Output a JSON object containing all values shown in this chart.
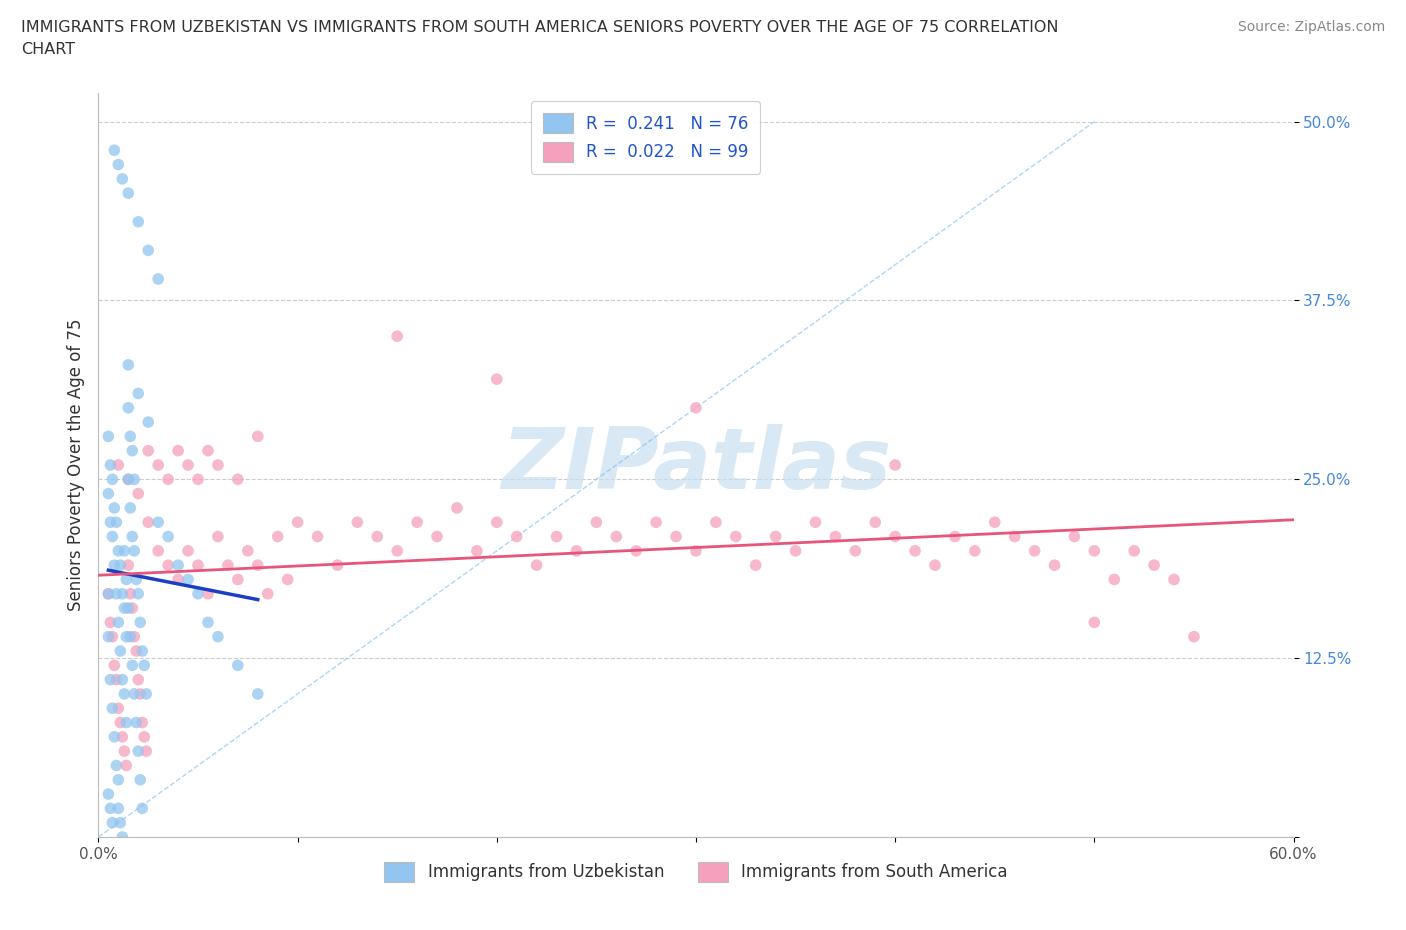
{
  "title_line1": "IMMIGRANTS FROM UZBEKISTAN VS IMMIGRANTS FROM SOUTH AMERICA SENIORS POVERTY OVER THE AGE OF 75 CORRELATION",
  "title_line2": "CHART",
  "source": "Source: ZipAtlas.com",
  "ylabel": "Seniors Poverty Over the Age of 75",
  "xlim": [
    0.0,
    0.6
  ],
  "ylim": [
    0.0,
    0.52
  ],
  "color_uzbekistan": "#92C5F0",
  "color_south_america": "#F5A0BC",
  "trendline_uzbekistan": "#1A3FC4",
  "trendline_south_america": "#E8557A",
  "diag_color": "#7ABAEE",
  "R_uzbekistan": 0.241,
  "N_uzbekistan": 76,
  "R_south_america": 0.022,
  "N_south_america": 99,
  "grid_color": "#CCCCCC",
  "text_color": "#333333",
  "right_tick_color": "#4488DD",
  "legend_R_color": "#2255CC",
  "watermark_color": "#C8DFF0",
  "uz_x": [
    0.005,
    0.005,
    0.006,
    0.007,
    0.008,
    0.009,
    0.01,
    0.01,
    0.011,
    0.012,
    0.013,
    0.014,
    0.015,
    0.016,
    0.017,
    0.018,
    0.019,
    0.02,
    0.021,
    0.022,
    0.005,
    0.006,
    0.007,
    0.008,
    0.009,
    0.01,
    0.011,
    0.012,
    0.013,
    0.014,
    0.015,
    0.016,
    0.017,
    0.018,
    0.019,
    0.02,
    0.021,
    0.022,
    0.023,
    0.024,
    0.005,
    0.006,
    0.007,
    0.008,
    0.009,
    0.01,
    0.011,
    0.012,
    0.013,
    0.014,
    0.015,
    0.016,
    0.017,
    0.018,
    0.03,
    0.035,
    0.04,
    0.045,
    0.05,
    0.055,
    0.06,
    0.07,
    0.08,
    0.015,
    0.02,
    0.025,
    0.03,
    0.01,
    0.008,
    0.012,
    0.015,
    0.02,
    0.025,
    0.005,
    0.006,
    0.007
  ],
  "uz_y": [
    0.17,
    0.14,
    0.11,
    0.09,
    0.07,
    0.05,
    0.04,
    0.02,
    0.01,
    0.0,
    0.2,
    0.18,
    0.16,
    0.14,
    0.12,
    0.1,
    0.08,
    0.06,
    0.04,
    0.02,
    0.24,
    0.22,
    0.21,
    0.19,
    0.17,
    0.15,
    0.13,
    0.11,
    0.1,
    0.08,
    0.25,
    0.23,
    0.21,
    0.2,
    0.18,
    0.17,
    0.15,
    0.13,
    0.12,
    0.1,
    0.28,
    0.26,
    0.25,
    0.23,
    0.22,
    0.2,
    0.19,
    0.17,
    0.16,
    0.14,
    0.3,
    0.28,
    0.27,
    0.25,
    0.22,
    0.21,
    0.19,
    0.18,
    0.17,
    0.15,
    0.14,
    0.12,
    0.1,
    0.45,
    0.43,
    0.41,
    0.39,
    0.47,
    0.48,
    0.46,
    0.33,
    0.31,
    0.29,
    0.03,
    0.02,
    0.01
  ],
  "sa_x": [
    0.005,
    0.006,
    0.007,
    0.008,
    0.009,
    0.01,
    0.011,
    0.012,
    0.013,
    0.014,
    0.015,
    0.016,
    0.017,
    0.018,
    0.019,
    0.02,
    0.021,
    0.022,
    0.023,
    0.024,
    0.025,
    0.03,
    0.035,
    0.04,
    0.045,
    0.05,
    0.055,
    0.06,
    0.065,
    0.07,
    0.075,
    0.08,
    0.085,
    0.09,
    0.095,
    0.1,
    0.11,
    0.12,
    0.13,
    0.14,
    0.15,
    0.16,
    0.17,
    0.18,
    0.19,
    0.2,
    0.21,
    0.22,
    0.23,
    0.24,
    0.25,
    0.26,
    0.27,
    0.28,
    0.29,
    0.3,
    0.31,
    0.32,
    0.33,
    0.34,
    0.35,
    0.36,
    0.37,
    0.38,
    0.39,
    0.4,
    0.41,
    0.42,
    0.43,
    0.44,
    0.45,
    0.46,
    0.47,
    0.48,
    0.49,
    0.5,
    0.51,
    0.52,
    0.53,
    0.54,
    0.01,
    0.015,
    0.02,
    0.025,
    0.03,
    0.035,
    0.04,
    0.045,
    0.05,
    0.055,
    0.06,
    0.07,
    0.08,
    0.15,
    0.2,
    0.3,
    0.4,
    0.5,
    0.55
  ],
  "sa_y": [
    0.17,
    0.15,
    0.14,
    0.12,
    0.11,
    0.09,
    0.08,
    0.07,
    0.06,
    0.05,
    0.19,
    0.17,
    0.16,
    0.14,
    0.13,
    0.11,
    0.1,
    0.08,
    0.07,
    0.06,
    0.22,
    0.2,
    0.19,
    0.18,
    0.2,
    0.19,
    0.17,
    0.21,
    0.19,
    0.18,
    0.2,
    0.19,
    0.17,
    0.21,
    0.18,
    0.22,
    0.21,
    0.19,
    0.22,
    0.21,
    0.2,
    0.22,
    0.21,
    0.23,
    0.2,
    0.22,
    0.21,
    0.19,
    0.21,
    0.2,
    0.22,
    0.21,
    0.2,
    0.22,
    0.21,
    0.2,
    0.22,
    0.21,
    0.19,
    0.21,
    0.2,
    0.22,
    0.21,
    0.2,
    0.22,
    0.21,
    0.2,
    0.19,
    0.21,
    0.2,
    0.22,
    0.21,
    0.2,
    0.19,
    0.21,
    0.2,
    0.18,
    0.2,
    0.19,
    0.18,
    0.26,
    0.25,
    0.24,
    0.27,
    0.26,
    0.25,
    0.27,
    0.26,
    0.25,
    0.27,
    0.26,
    0.25,
    0.28,
    0.35,
    0.32,
    0.3,
    0.26,
    0.15,
    0.14
  ]
}
